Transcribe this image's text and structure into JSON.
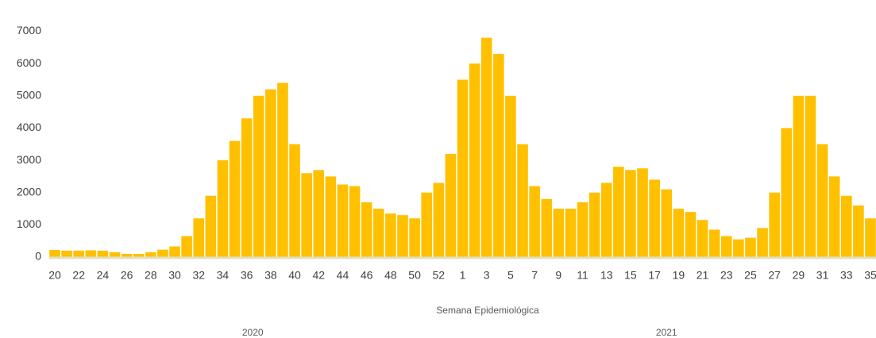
{
  "chart_data": {
    "type": "bar",
    "x_label": "Semana Epidemiológica",
    "groups": [
      {
        "label": "2020",
        "start": 0,
        "end": 33
      },
      {
        "label": "2021",
        "start": 34,
        "end": 68
      }
    ],
    "categories": [
      "20",
      null,
      "22",
      null,
      "24",
      null,
      "26",
      null,
      "28",
      null,
      "30",
      null,
      "32",
      null,
      "34",
      null,
      "36",
      null,
      "38",
      null,
      "40",
      null,
      "42",
      null,
      "44",
      null,
      "46",
      null,
      "48",
      null,
      "50",
      null,
      "52",
      null,
      "1",
      null,
      "3",
      null,
      "5",
      null,
      "7",
      null,
      "9",
      null,
      "11",
      null,
      "13",
      null,
      "15",
      null,
      "17",
      null,
      "19",
      null,
      "21",
      null,
      "23",
      null,
      "25",
      null,
      "27",
      null,
      "29",
      null,
      "31",
      null,
      "33",
      null,
      "35"
    ],
    "values": [
      220,
      200,
      200,
      210,
      200,
      150,
      100,
      100,
      150,
      230,
      330,
      650,
      1200,
      1900,
      3000,
      3600,
      4300,
      5000,
      5200,
      5400,
      3500,
      2600,
      2700,
      2500,
      2250,
      2200,
      1700,
      1500,
      1350,
      1300,
      1200,
      2000,
      2300,
      3200,
      5500,
      6000,
      6800,
      6300,
      5000,
      3500,
      2200,
      1800,
      1500,
      1500,
      1700,
      2000,
      2300,
      2800,
      2700,
      2750,
      2400,
      2100,
      1500,
      1400,
      1150,
      850,
      650,
      550,
      600,
      900,
      2000,
      4000,
      5000,
      5000,
      3500,
      2500,
      1900,
      1600,
      1200
    ],
    "color": "#ffc000",
    "ylim": [
      0,
      7700
    ],
    "yticks": [
      0,
      1000,
      2000,
      3000,
      4000,
      5000,
      6000,
      7000
    ]
  }
}
